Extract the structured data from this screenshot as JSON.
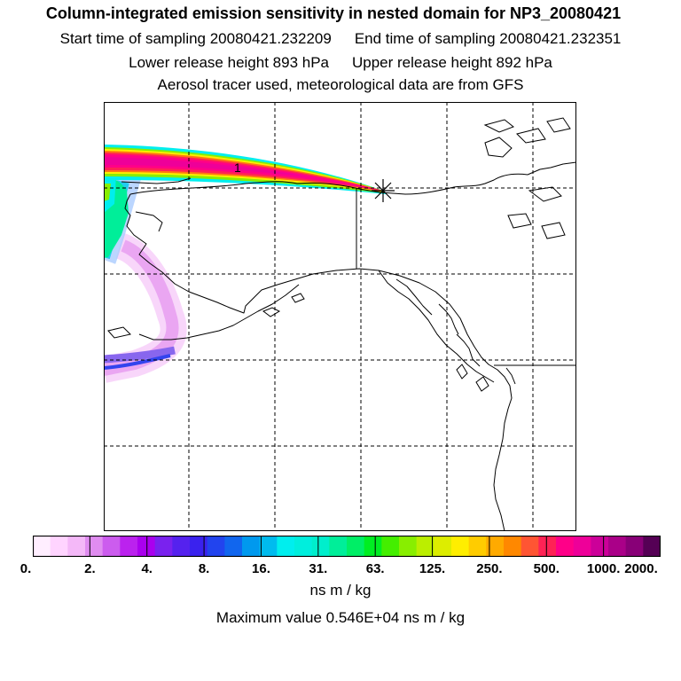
{
  "header": {
    "title": "Column-integrated emission sensitivity in nested domain for NP3_20080421",
    "start_time": "Start time of sampling 20080421.232209",
    "end_time": "End time of sampling 20080421.232351",
    "lower_release": "Lower release height  893 hPa",
    "upper_release": "Upper release height  892 hPa",
    "tracer_info": "Aerosol tracer used, meteorological data are from GFS"
  },
  "map": {
    "label_marker": "1",
    "release_point_symbol": "asterisk",
    "colors": {
      "land_outline": "#000000",
      "grid": "#000000",
      "plume_core": "#ff0088"
    }
  },
  "colorbar": {
    "tick_labels": [
      "0.",
      "2.",
      "4.",
      "8.",
      "16.",
      "31.",
      "63.",
      "125.",
      "250.",
      "500.",
      "1000.",
      "2000."
    ],
    "units": "ns m / kg",
    "colors": [
      "#ffeeff",
      "#ffd4ff",
      "#f4b8f8",
      "#e08cf0",
      "#cc5cee",
      "#bb22ee",
      "#aa00ee",
      "#7a22ee",
      "#5522ee",
      "#3a22ee",
      "#2244ee",
      "#1166ee",
      "#0099ee",
      "#00bbee",
      "#00eeee",
      "#00eedd",
      "#00eecc",
      "#00ee99",
      "#00ee66",
      "#00ee22",
      "#44ee00",
      "#88ee00",
      "#bbee00",
      "#dded00",
      "#ffee00",
      "#ffcc00",
      "#ffaa00",
      "#ff8800",
      "#ff5533",
      "#ff2255",
      "#ff0088",
      "#ee0099",
      "#cc0099",
      "#aa0088",
      "#880077",
      "#550055"
    ]
  },
  "max_value": "Maximum value  0.546E+04 ns m / kg"
}
